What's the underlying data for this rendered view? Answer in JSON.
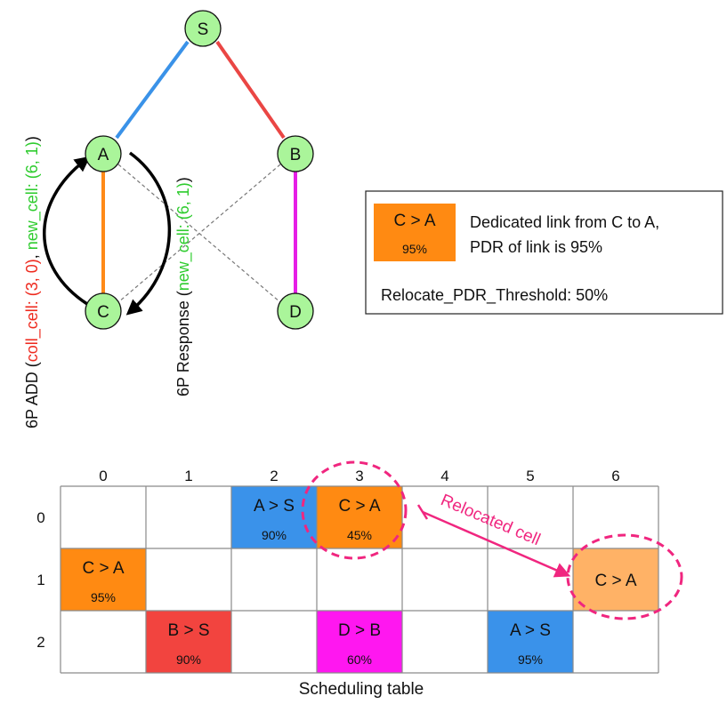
{
  "nodes": {
    "S": "S",
    "A": "A",
    "B": "B",
    "C": "C",
    "D": "D"
  },
  "colors": {
    "node_fill": "#aaf59a",
    "link_A_S": "#3a92e8",
    "link_B_S": "#ea4644",
    "link_C_A": "#ff8a18",
    "link_D_B": "#e61ee6",
    "cross": "#777777",
    "request_red": "#ee2a1e",
    "request_green": "#2fcc2f",
    "reloc": "#f0267f",
    "orange": "#ff8a12",
    "orange_light": "#ffb266",
    "blue": "#3a92ea",
    "red": "#f2443f",
    "magenta": "#ff17f0"
  },
  "left_annotation": {
    "part1": "6P ADD (",
    "part2": "coll_cell: (3, 0)",
    "part3": ", ",
    "part4": "new_cell: (6, 1)",
    "part5": ")"
  },
  "right_annotation": {
    "part1": "6P Response (",
    "part2": "new_cell: (6, 1)",
    "part3": ")"
  },
  "legend": {
    "cell_main": "C > A",
    "cell_sub": "95%",
    "desc_line1": "Dedicated link from C to A,",
    "desc_line2": "PDR of link is 95%",
    "threshold": "Relocate_PDR_Threshold: 50%"
  },
  "table": {
    "columns": [
      "0",
      "1",
      "2",
      "3",
      "4",
      "5",
      "6"
    ],
    "rows": [
      "0",
      "1",
      "2"
    ],
    "cells": [
      {
        "col": 2,
        "row": 0,
        "label": "A > S",
        "pdr": "90%",
        "color": "blue"
      },
      {
        "col": 3,
        "row": 0,
        "label": "C > A",
        "pdr": "45%",
        "color": "orange"
      },
      {
        "col": 0,
        "row": 1,
        "label": "C > A",
        "pdr": "95%",
        "color": "orange"
      },
      {
        "col": 6,
        "row": 1,
        "label": "C > A",
        "pdr": "",
        "color": "orange_light"
      },
      {
        "col": 1,
        "row": 2,
        "label": "B > S",
        "pdr": "90%",
        "color": "red"
      },
      {
        "col": 3,
        "row": 2,
        "label": "D > B",
        "pdr": "60%",
        "color": "magenta"
      },
      {
        "col": 5,
        "row": 2,
        "label": "A > S",
        "pdr": "95%",
        "color": "blue"
      }
    ],
    "relocated_label": "Relocated cell",
    "caption": "Scheduling table"
  }
}
